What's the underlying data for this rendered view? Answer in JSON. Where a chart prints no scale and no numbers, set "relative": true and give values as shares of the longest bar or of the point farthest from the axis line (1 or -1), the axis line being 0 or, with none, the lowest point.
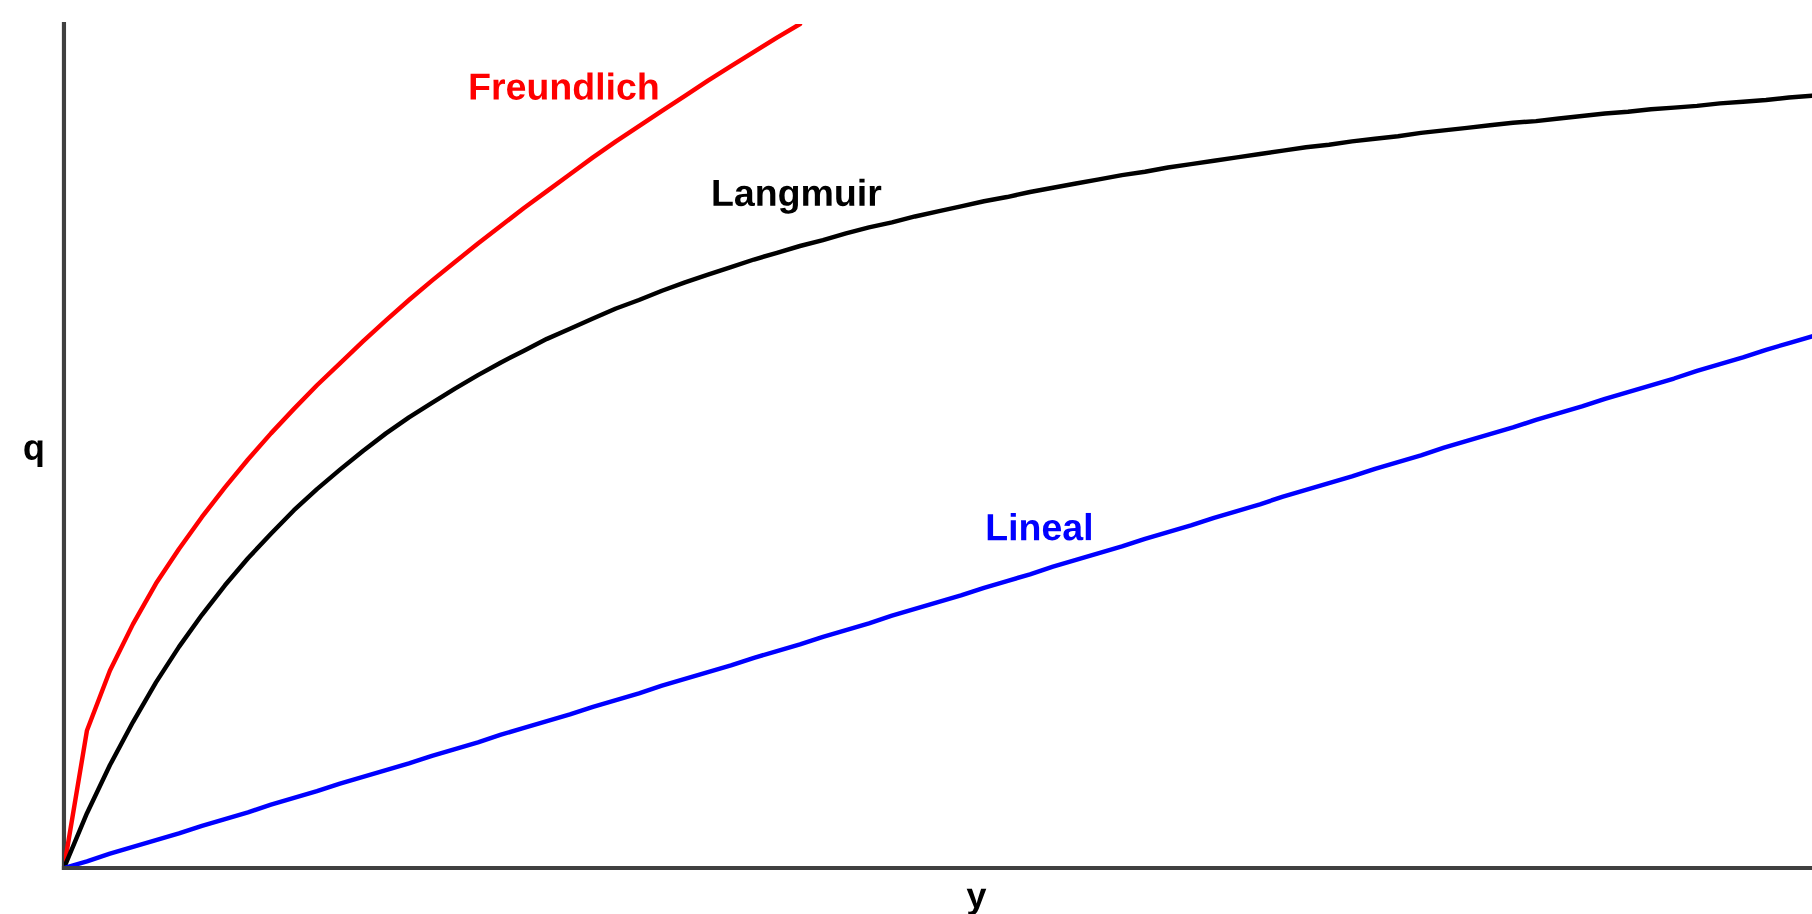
{
  "chart_data": {
    "type": "line",
    "relative": true,
    "xlabel": "y",
    "ylabel": "q",
    "categories": [
      null,
      null,
      null,
      null,
      null,
      null,
      null,
      null,
      null,
      null,
      null,
      null,
      null,
      null,
      null,
      null,
      null,
      null,
      null,
      null,
      null,
      null,
      null,
      null,
      null,
      null,
      null,
      null,
      null,
      null,
      null,
      null,
      null,
      null,
      null,
      null,
      null,
      null,
      null,
      null,
      null,
      null,
      null,
      null,
      null,
      null,
      null,
      null,
      null,
      null,
      null,
      null,
      null,
      null,
      null,
      null,
      null,
      null,
      null,
      null,
      null,
      null,
      null,
      null,
      null,
      null,
      null,
      null,
      null,
      null,
      null,
      null,
      null,
      null,
      null,
      null,
      null
    ],
    "series": [
      {
        "name": "Freundlich",
        "color": "#ff0000",
        "values": [
          0,
          0.163,
          0.234,
          0.289,
          0.337,
          0.378,
          0.416,
          0.451,
          0.484,
          0.515,
          0.544,
          0.572,
          0.598,
          0.624,
          0.649,
          0.673,
          0.696,
          0.718,
          0.74,
          0.761,
          0.782,
          0.802,
          0.822,
          0.842,
          0.861,
          0.879,
          0.897,
          0.915,
          0.933,
          0.95,
          0.967,
          0.984,
          1.0,
          null,
          null,
          null,
          null,
          null,
          null,
          null,
          null,
          null,
          null,
          null,
          null,
          null,
          null,
          null,
          null,
          null,
          null,
          null,
          null,
          null,
          null,
          null,
          null,
          null,
          null,
          null,
          null,
          null,
          null,
          null,
          null,
          null,
          null,
          null,
          null,
          null,
          null,
          null,
          null,
          null,
          null,
          null,
          null
        ]
      },
      {
        "name": "Langmuir",
        "color": "#000000",
        "values": [
          0,
          0.065,
          0.122,
          0.173,
          0.22,
          0.262,
          0.3,
          0.335,
          0.367,
          0.396,
          0.424,
          0.449,
          0.472,
          0.494,
          0.515,
          0.534,
          0.551,
          0.568,
          0.584,
          0.599,
          0.613,
          0.627,
          0.639,
          0.651,
          0.663,
          0.673,
          0.684,
          0.694,
          0.703,
          0.712,
          0.721,
          0.729,
          0.737,
          0.744,
          0.752,
          0.759,
          0.765,
          0.772,
          0.778,
          0.784,
          0.79,
          0.795,
          0.801,
          0.806,
          0.811,
          0.816,
          0.821,
          0.825,
          0.83,
          0.834,
          0.838,
          0.842,
          0.846,
          0.85,
          0.854,
          0.857,
          0.861,
          0.864,
          0.867,
          0.871,
          0.874,
          0.877,
          0.88,
          0.883,
          0.885,
          0.888,
          0.891,
          0.894,
          0.896,
          0.899,
          0.901,
          0.903,
          0.906,
          0.908,
          0.91,
          0.913,
          0.915
        ]
      },
      {
        "name": "Lineal",
        "color": "#0000ff",
        "values": [
          0,
          0.008,
          0.017,
          0.025,
          0.033,
          0.041,
          0.05,
          0.058,
          0.066,
          0.075,
          0.083,
          0.091,
          0.1,
          0.108,
          0.116,
          0.124,
          0.133,
          0.141,
          0.149,
          0.158,
          0.166,
          0.174,
          0.182,
          0.191,
          0.199,
          0.207,
          0.216,
          0.224,
          0.232,
          0.24,
          0.249,
          0.257,
          0.265,
          0.274,
          0.282,
          0.29,
          0.299,
          0.307,
          0.315,
          0.323,
          0.332,
          0.34,
          0.348,
          0.357,
          0.365,
          0.373,
          0.381,
          0.39,
          0.398,
          0.406,
          0.415,
          0.423,
          0.431,
          0.44,
          0.448,
          0.456,
          0.464,
          0.473,
          0.481,
          0.489,
          0.498,
          0.506,
          0.514,
          0.522,
          0.531,
          0.539,
          0.547,
          0.556,
          0.564,
          0.572,
          0.58,
          0.589,
          0.597,
          0.605,
          0.614,
          0.622,
          0.63
        ]
      }
    ]
  }
}
